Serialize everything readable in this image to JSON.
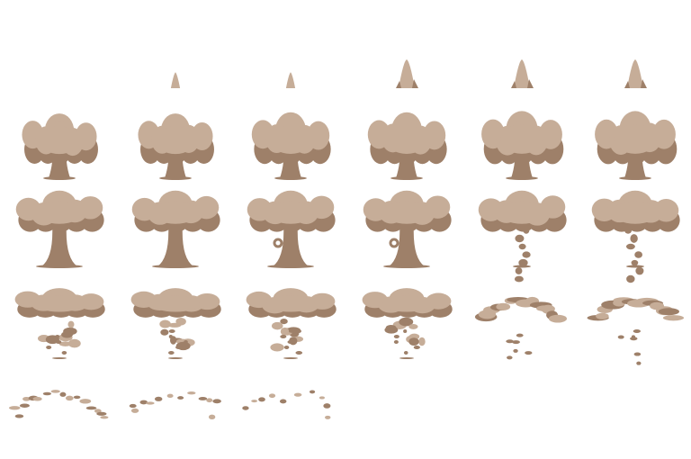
{
  "sheet": {
    "background": "#ffffff",
    "colors": {
      "light": "#c6ad98",
      "dark": "#9e8069"
    },
    "frames": [
      {
        "row": 0,
        "col": 0,
        "kind": "cloud",
        "stem": 0.7,
        "cap": 0.8,
        "spike": 0.0
      },
      {
        "row": 0,
        "col": 1,
        "kind": "cloud",
        "stem": 0.7,
        "cap": 0.8,
        "spike": 0.35
      },
      {
        "row": 0,
        "col": 2,
        "kind": "cloud",
        "stem": 0.75,
        "cap": 0.9,
        "spike": 0.35
      },
      {
        "row": 0,
        "col": 3,
        "kind": "cloud",
        "stem": 0.75,
        "cap": 0.9,
        "spike": 1.0
      },
      {
        "row": 0,
        "col": 4,
        "kind": "cloud",
        "stem": 0.85,
        "cap": 1.0,
        "spike": 1.0
      },
      {
        "row": 0,
        "col": 5,
        "kind": "cloud",
        "stem": 0.85,
        "cap": 1.0,
        "spike": 1.0
      },
      {
        "row": 1,
        "col": 0,
        "kind": "tree",
        "stem": 0.9,
        "cap": 1.0,
        "spike": 0
      },
      {
        "row": 1,
        "col": 1,
        "kind": "tree",
        "stem": 0.9,
        "cap": 1.0,
        "spike": 0
      },
      {
        "row": 1,
        "col": 2,
        "kind": "tree",
        "stem": 0.8,
        "cap": 1.0,
        "spike": 0
      },
      {
        "row": 1,
        "col": 3,
        "kind": "tree",
        "stem": 0.8,
        "cap": 1.0,
        "spike": 0
      },
      {
        "row": 1,
        "col": 4,
        "kind": "breakup",
        "stem": 0.5,
        "cap": 1.0,
        "spike": 0
      },
      {
        "row": 1,
        "col": 5,
        "kind": "breakup",
        "stem": 0.5,
        "cap": 1.0,
        "spike": 0
      },
      {
        "row": 2,
        "col": 0,
        "kind": "dissolve",
        "stem": 0.4,
        "cap": 1.0,
        "spike": 0
      },
      {
        "row": 2,
        "col": 1,
        "kind": "dissolve",
        "stem": 0.4,
        "cap": 1.0,
        "spike": 0
      },
      {
        "row": 2,
        "col": 2,
        "kind": "dissolve",
        "stem": 0.3,
        "cap": 0.9,
        "spike": 0
      },
      {
        "row": 2,
        "col": 3,
        "kind": "dissolve",
        "stem": 0.3,
        "cap": 0.9,
        "spike": 0
      },
      {
        "row": 2,
        "col": 4,
        "kind": "arc",
        "stem": 0.2,
        "cap": 0.8,
        "spike": 0
      },
      {
        "row": 2,
        "col": 5,
        "kind": "arc",
        "stem": 0.2,
        "cap": 0.8,
        "spike": 0
      },
      {
        "row": 3,
        "col": 0,
        "kind": "scatter",
        "stem": 0.0,
        "cap": 0.7,
        "spike": 0
      },
      {
        "row": 3,
        "col": 1,
        "kind": "scatter",
        "stem": 0.0,
        "cap": 0.4,
        "spike": 0
      },
      {
        "row": 3,
        "col": 2,
        "kind": "scatter",
        "stem": 0.0,
        "cap": 0.3,
        "spike": 0
      }
    ]
  }
}
